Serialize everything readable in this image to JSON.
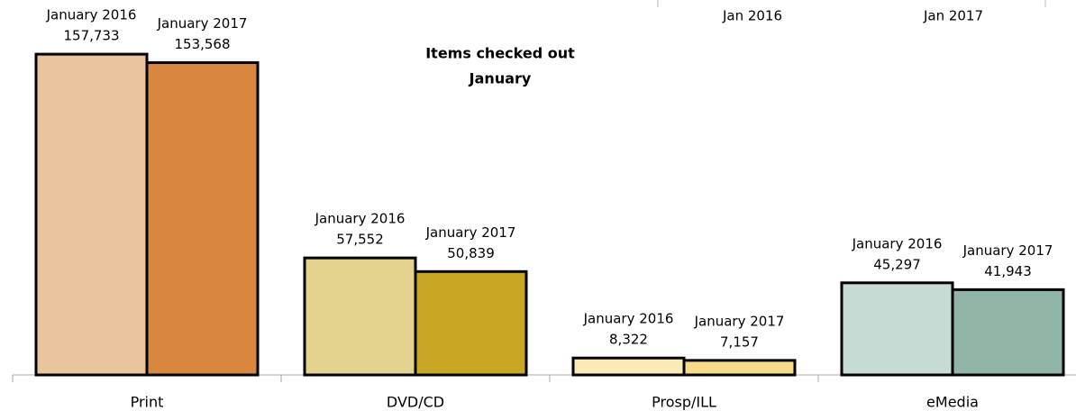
{
  "chart_data": {
    "type": "bar",
    "title": [
      "Items checked out",
      "January"
    ],
    "column_headers": [
      "Jan 2016",
      "Jan 2017"
    ],
    "categories": [
      "Print",
      "DVD/CD",
      "Prosp/ILL",
      "eMedia"
    ],
    "series": [
      {
        "name": "January 2016",
        "colors": [
          "#eac39f",
          "#e3d38e",
          "#fbe9b6",
          "#c7dbd5"
        ],
        "values": [
          157733,
          57552,
          8322,
          45297
        ],
        "value_labels": [
          "157,733",
          "57,552",
          "8,322",
          "45,297"
        ]
      },
      {
        "name": "January 2017",
        "colors": [
          "#d9873f",
          "#c9a724",
          "#f7da8a",
          "#91b5a7"
        ],
        "values": [
          153568,
          50839,
          7157,
          41943
        ],
        "value_labels": [
          "153,568",
          "50,839",
          "7,157",
          "41,943"
        ]
      }
    ],
    "ylim": [
      0,
      160000
    ]
  }
}
